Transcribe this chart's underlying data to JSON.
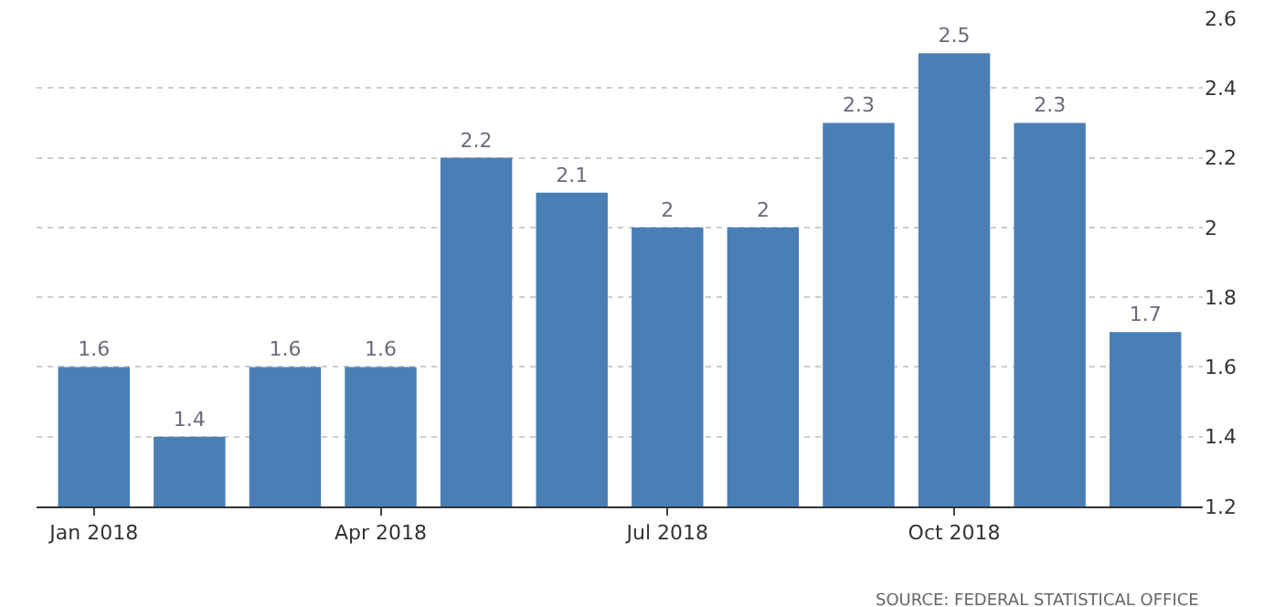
{
  "chart_data": {
    "type": "bar",
    "categories": [
      "Jan 2018",
      null,
      null,
      "Apr 2018",
      null,
      null,
      "Jul 2018",
      null,
      null,
      "Oct 2018",
      null,
      null
    ],
    "values": [
      1.6,
      1.4,
      1.6,
      1.6,
      2.2,
      2.1,
      2,
      2,
      2.3,
      2.5,
      2.3,
      1.7
    ],
    "color": "#4a7fb5",
    "ylim": [
      1.2,
      2.6
    ],
    "yticks": [
      1.2,
      1.4,
      1.6,
      1.8,
      2,
      2.2,
      2.4,
      2.6
    ],
    "grid": "y",
    "data_labels": true,
    "annotations": [
      "SOURCE: FEDERAL STATISTICAL OFFICE"
    ]
  }
}
